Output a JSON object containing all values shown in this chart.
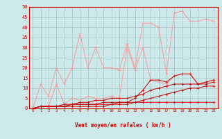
{
  "bg_color": "#cce8e8",
  "grid_color": "#aacccc",
  "line_color_dark": "#cc0000",
  "line_color_light": "#ff9999",
  "xlabel": "Vent moyen/en rafales ( km/h )",
  "xlabel_color": "#cc0000",
  "xlim": [
    -0.5,
    23.5
  ],
  "ylim": [
    0,
    50
  ],
  "xticks": [
    0,
    1,
    2,
    3,
    4,
    5,
    6,
    7,
    8,
    9,
    10,
    11,
    12,
    13,
    14,
    15,
    16,
    17,
    18,
    19,
    20,
    21,
    22,
    23
  ],
  "yticks": [
    0,
    5,
    10,
    15,
    20,
    25,
    30,
    35,
    40,
    45,
    50
  ],
  "series_dark": [
    [
      0,
      1,
      1,
      1,
      1,
      2,
      2,
      2,
      2,
      3,
      3,
      3,
      3,
      5,
      9,
      14,
      14,
      13,
      16,
      17,
      17,
      12,
      13,
      14
    ],
    [
      0,
      1,
      1,
      1,
      2,
      2,
      3,
      3,
      4,
      4,
      5,
      5,
      5,
      6,
      7,
      9,
      10,
      11,
      12,
      12,
      12,
      12,
      12,
      13
    ],
    [
      0,
      1,
      1,
      1,
      1,
      2,
      2,
      2,
      2,
      2,
      2,
      3,
      3,
      3,
      4,
      5,
      6,
      7,
      8,
      9,
      10,
      10,
      11,
      11
    ],
    [
      0,
      1,
      1,
      1,
      1,
      1,
      1,
      1,
      1,
      1,
      2,
      2,
      2,
      3,
      3,
      3,
      3,
      3,
      3,
      3,
      3,
      3,
      3,
      3
    ]
  ],
  "series_light": [
    [
      0,
      12,
      6,
      20,
      12,
      20,
      37,
      20,
      30,
      20,
      20,
      19,
      32,
      20,
      42,
      42,
      40,
      17,
      47,
      48,
      43,
      43,
      44,
      43
    ],
    [
      0,
      1,
      1,
      12,
      2,
      5,
      4,
      6,
      5,
      5,
      6,
      5,
      30,
      19,
      30,
      14,
      13,
      12,
      16,
      17,
      17,
      12,
      13,
      14
    ]
  ],
  "arrow_symbols": [
    "↑",
    "↗",
    "↑",
    "↑",
    "↖",
    "↙",
    "↓",
    "→",
    "↙",
    "→",
    "↗",
    "↖",
    "↑",
    "↑",
    "↗",
    "→",
    "→",
    "↗",
    "↗",
    "↗",
    "→",
    "→",
    "→",
    "↗"
  ]
}
